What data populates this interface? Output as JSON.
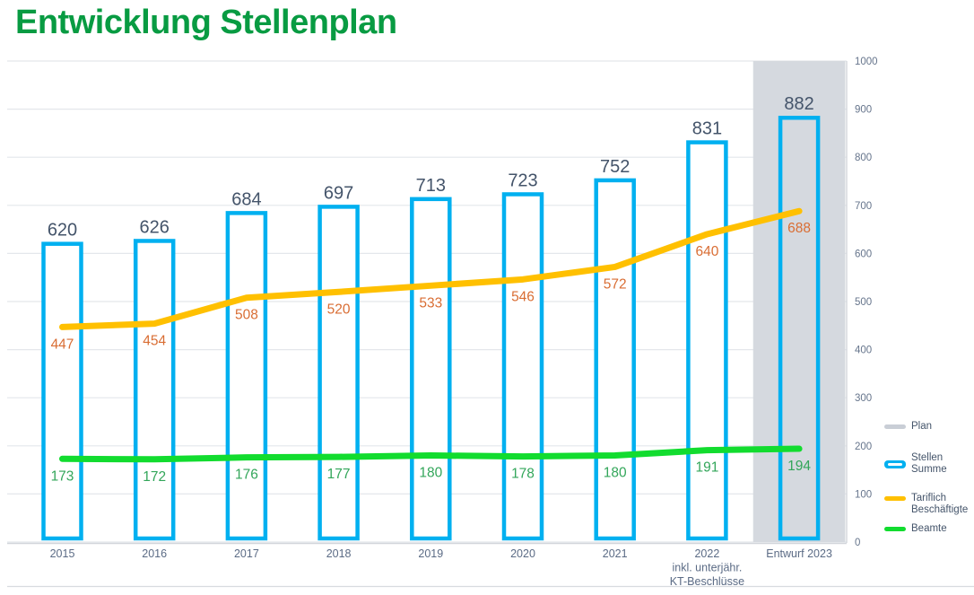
{
  "title": "Entwicklung Stellenplan",
  "chart_data": {
    "type": "bar",
    "title": "Entwicklung Stellenplan",
    "categories": [
      [
        "2015"
      ],
      [
        "2016"
      ],
      [
        "2017"
      ],
      [
        "2018"
      ],
      [
        "2019"
      ],
      [
        "2020"
      ],
      [
        "2021"
      ],
      [
        "2022",
        "inkl. unterjähr.",
        "KT-Beschlüsse"
      ],
      [
        "Entwurf 2023"
      ]
    ],
    "series": [
      {
        "name": "Stellen Summe",
        "type": "bar",
        "color": "#00B0F0",
        "label_color": "#44546A",
        "values": [
          620,
          626,
          684,
          697,
          713,
          723,
          752,
          831,
          882
        ]
      },
      {
        "name": "Tariflich Beschäftigte",
        "type": "line",
        "color": "#FFC000",
        "label_color": "#D96D33",
        "values": [
          447,
          454,
          508,
          520,
          533,
          546,
          572,
          640,
          688
        ]
      },
      {
        "name": "Beamte",
        "type": "line",
        "color": "#12DC2F",
        "label_color": "#33A65A",
        "values": [
          173,
          172,
          176,
          177,
          180,
          178,
          180,
          191,
          194
        ]
      }
    ],
    "plan_band": {
      "name": "Plan",
      "category_index": 8,
      "color": "#D5D9DF"
    },
    "y_axis": {
      "min": 0,
      "max": 1000,
      "step": 100,
      "side": "right",
      "ticks": [
        0,
        100,
        200,
        300,
        400,
        500,
        600,
        700,
        800,
        900,
        1000
      ]
    },
    "grid": true,
    "legend_position": "right"
  },
  "legend": {
    "items": [
      {
        "label_lines": [
          "Plan"
        ],
        "swatch": "band",
        "color": "#C9CED6"
      },
      {
        "label_lines": [
          "Stellen Summe"
        ],
        "swatch": "bar-outline",
        "color": "#00B0F0"
      },
      {
        "label_lines": [
          "Tariflich",
          "Beschäftigte"
        ],
        "swatch": "line",
        "color": "#FFC000"
      },
      {
        "label_lines": [
          "Beamte"
        ],
        "swatch": "line",
        "color": "#12DC2F"
      }
    ]
  },
  "colors": {
    "title": "#089B42",
    "bar_fill": "#FFFFFF",
    "y_tick_label": "#66758C",
    "x_tick_label": "#5B6B85",
    "gridline": "#E4E7EB",
    "axis_line": "#D2D6DB",
    "frame_line": "#D8DBDF"
  }
}
